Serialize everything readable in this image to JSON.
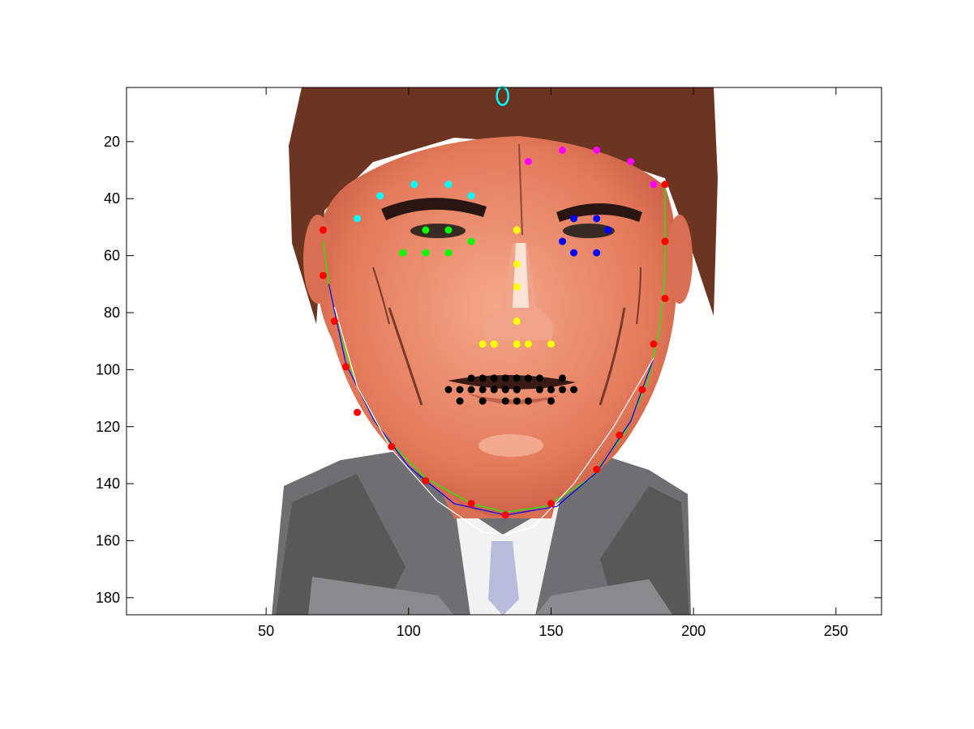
{
  "chart_data": {
    "type": "scatter",
    "title": "",
    "xlabel": "",
    "ylabel": "",
    "xlim": [
      1,
      266
    ],
    "ylim": [
      1,
      186
    ],
    "y_reversed": true,
    "grid": false,
    "legend": "none",
    "x_ticks": [
      50,
      100,
      150,
      200,
      250
    ],
    "y_ticks": [
      20,
      40,
      60,
      80,
      100,
      120,
      140,
      160,
      180
    ],
    "background_image": "caricature-face-portrait",
    "series": [
      {
        "color": "#ff00ff",
        "marker": "dot",
        "x": [
          142,
          154,
          166,
          178,
          186
        ],
        "y": [
          27,
          23,
          23,
          27,
          35
        ]
      },
      {
        "color": "#00ffff",
        "marker": "dot",
        "x": [
          82,
          90,
          102,
          114,
          122
        ],
        "y": [
          47,
          39,
          35,
          35,
          39
        ]
      },
      {
        "color": "#0000ff",
        "marker": "dot",
        "x": [
          158,
          166,
          170,
          166,
          158,
          154
        ],
        "y": [
          47,
          47,
          51,
          59,
          59,
          55
        ]
      },
      {
        "color": "#00ff00",
        "marker": "dot",
        "x": [
          98,
          106,
          114,
          122,
          114,
          106
        ],
        "y": [
          59,
          51,
          51,
          55,
          59,
          59
        ]
      },
      {
        "color": "#ffff00",
        "marker": "dot",
        "x": [
          138,
          138,
          138,
          138,
          126,
          130,
          138,
          142,
          150
        ],
        "y": [
          51,
          63,
          71,
          83,
          91,
          91,
          91,
          91,
          91
        ]
      },
      {
        "color": "#000000",
        "marker": "dot",
        "x": [
          114,
          122,
          126,
          130,
          134,
          138,
          142,
          146,
          154,
          158,
          118,
          126,
          134,
          138,
          150,
          122,
          130,
          138,
          146,
          150,
          154,
          118,
          126,
          134,
          138,
          142,
          150
        ],
        "y": [
          107,
          103,
          103,
          103,
          103,
          103,
          103,
          103,
          103,
          107,
          107,
          107,
          107,
          107,
          107,
          107,
          107,
          107,
          107,
          107,
          107,
          111,
          111,
          111,
          111,
          111,
          111
        ]
      },
      {
        "color": "#ff0000",
        "marker": "dot",
        "x": [
          70,
          70,
          74,
          78,
          82,
          94,
          106,
          122,
          134,
          150,
          166,
          174,
          182,
          186,
          190,
          190,
          190
        ],
        "y": [
          51,
          67,
          83,
          99,
          115,
          127,
          139,
          147,
          151,
          147,
          135,
          123,
          107,
          91,
          75,
          55,
          35
        ]
      },
      {
        "color": "#00ff00",
        "marker": "line",
        "x": [
          70,
          72,
          76,
          82,
          92,
          106,
          122,
          134,
          148,
          164,
          176,
          184,
          188,
          190,
          190
        ],
        "y": [
          55,
          70,
          88,
          106,
          124,
          138,
          147,
          150,
          148,
          138,
          122,
          104,
          86,
          66,
          35
        ]
      },
      {
        "color": "#0000ff",
        "marker": "line",
        "x": [
          72,
          78,
          88,
          100,
          116,
          134,
          152,
          166,
          178,
          186
        ],
        "y": [
          70,
          98,
          118,
          134,
          147,
          151,
          148,
          136,
          118,
          96
        ]
      },
      {
        "color": "#ffffff",
        "marker": "line",
        "x": [
          74,
          82,
          94,
          110,
          126,
          134,
          144,
          158,
          172,
          186
        ],
        "y": [
          78,
          106,
          128,
          146,
          157,
          158,
          155,
          140,
          120,
          96
        ]
      },
      {
        "color": "#00ffff",
        "marker": "ring",
        "x": [
          133
        ],
        "y": [
          4
        ]
      }
    ]
  }
}
